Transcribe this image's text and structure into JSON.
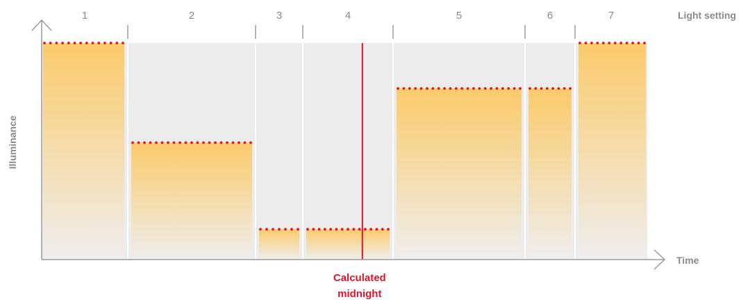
{
  "chart_data": {
    "type": "bar",
    "title": "",
    "xlabel": "Time",
    "ylabel": "Illuminance",
    "segment_axis_label": "Light setting",
    "categories": [
      "1",
      "2",
      "3",
      "4",
      "5",
      "6",
      "7"
    ],
    "values": [
      100,
      54,
      14,
      14,
      79,
      79,
      100
    ],
    "ylim": [
      0,
      100
    ],
    "grid": false,
    "marker": {
      "label_line1": "Calculated",
      "label_line2": "midnight",
      "segment": "4",
      "color": "#e0142c"
    },
    "colors": {
      "bar_top": "#fbcb6b",
      "bar_bottom": "#eeeeee",
      "background": "#ececec",
      "level_dots": "#e0142c",
      "axis": "#9a9a9a"
    }
  }
}
